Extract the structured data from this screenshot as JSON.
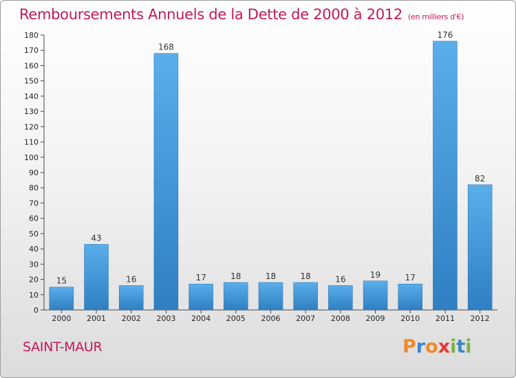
{
  "header": {
    "title": "Remboursements Annuels de la Dette de 2000 à 2012",
    "unit": "(en milliers d'€)"
  },
  "footer": {
    "town": "SAINT-MAUR",
    "brand_letters": [
      {
        "ch": "P",
        "color": "#f08a24"
      },
      {
        "ch": "r",
        "color": "#3a87c8"
      },
      {
        "ch": "o",
        "color": "#f08a24"
      },
      {
        "ch": "x",
        "color": "#e53935"
      },
      {
        "ch": "i",
        "color": "#7cb342"
      },
      {
        "ch": "t",
        "color": "#3a87c8"
      },
      {
        "ch": "i",
        "color": "#7cb342"
      }
    ]
  },
  "chart_data": {
    "type": "bar",
    "title": "Remboursements Annuels de la Dette de 2000 à 2012",
    "categories": [
      "2000",
      "2001",
      "2002",
      "2003",
      "2004",
      "2005",
      "2006",
      "2007",
      "2008",
      "2009",
      "2010",
      "2011",
      "2012"
    ],
    "values": [
      15,
      43,
      16,
      168,
      17,
      18,
      18,
      18,
      16,
      19,
      17,
      176,
      82
    ],
    "ylim": [
      0,
      180
    ],
    "ytick_step": 10,
    "grid": false,
    "bar_color": "#4a9fe0",
    "bar_color_dark": "#2a7cc0"
  }
}
